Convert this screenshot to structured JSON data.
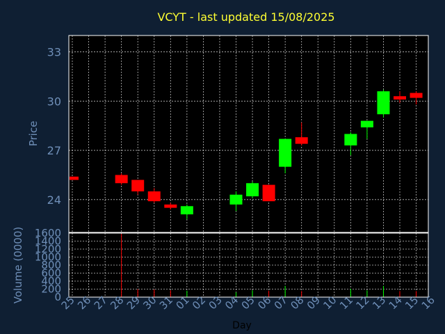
{
  "chart_data": {
    "type": "candlestick",
    "title": "VCYT - last updated 15/08/2025",
    "xlabel": "Day",
    "colors": {
      "background": "#0f1f33",
      "plot": "#000000",
      "grid": "#ffffff",
      "up": "#00ff00",
      "down": "#ff0000",
      "title": "#ffff33",
      "axis_text": "#6f8fb8"
    },
    "days": [
      "25",
      "26",
      "27",
      "28",
      "29",
      "30",
      "31",
      "01",
      "02",
      "03",
      "04",
      "05",
      "06",
      "07",
      "08",
      "09",
      "10",
      "11",
      "12",
      "13",
      "14",
      "15",
      "16"
    ],
    "price_panel": {
      "ylabel": "Price",
      "ylim": [
        22.0,
        34.0
      ],
      "yticks": [
        24,
        27,
        30,
        33
      ],
      "grid": true
    },
    "volume_panel": {
      "ylabel": "Volume (0000)",
      "ylim": [
        0,
        1600
      ],
      "yticks": [
        0,
        200,
        400,
        600,
        800,
        1000,
        1200,
        1400,
        1600
      ],
      "grid": true
    },
    "candles": [
      {
        "day": "25",
        "open": 25.4,
        "high": 25.4,
        "low": 25.2,
        "close": 25.2,
        "volume": 0
      },
      {
        "day": "28",
        "open": 25.5,
        "high": 25.6,
        "low": 24.9,
        "close": 25.0,
        "volume": 1580
      },
      {
        "day": "29",
        "open": 25.2,
        "high": 25.2,
        "low": 24.3,
        "close": 24.5,
        "volume": 200
      },
      {
        "day": "30",
        "open": 24.5,
        "high": 24.7,
        "low": 23.8,
        "close": 23.9,
        "volume": 190
      },
      {
        "day": "31",
        "open": 23.7,
        "high": 23.8,
        "low": 23.4,
        "close": 23.5,
        "volume": 170
      },
      {
        "day": "01",
        "open": 23.1,
        "high": 23.7,
        "low": 22.8,
        "close": 23.6,
        "volume": 160
      },
      {
        "day": "04",
        "open": 23.7,
        "high": 24.5,
        "low": 23.3,
        "close": 24.3,
        "volume": 120
      },
      {
        "day": "05",
        "open": 24.2,
        "high": 25.1,
        "low": 24.1,
        "close": 25.0,
        "volume": 170
      },
      {
        "day": "06",
        "open": 24.9,
        "high": 24.9,
        "low": 23.9,
        "close": 23.9,
        "volume": 160
      },
      {
        "day": "07",
        "open": 26.0,
        "high": 27.7,
        "low": 25.6,
        "close": 27.7,
        "volume": 280
      },
      {
        "day": "08",
        "open": 27.8,
        "high": 28.7,
        "low": 27.3,
        "close": 27.4,
        "volume": 150
      },
      {
        "day": "11",
        "open": 27.3,
        "high": 28.1,
        "low": 26.7,
        "close": 28.0,
        "volume": 210
      },
      {
        "day": "12",
        "open": 28.4,
        "high": 28.8,
        "low": 27.7,
        "close": 28.8,
        "volume": 170
      },
      {
        "day": "13",
        "open": 29.2,
        "high": 30.7,
        "low": 29.0,
        "close": 30.6,
        "volume": 280
      },
      {
        "day": "14",
        "open": 30.3,
        "high": 30.6,
        "low": 29.9,
        "close": 30.1,
        "volume": 150
      },
      {
        "day": "15",
        "open": 30.5,
        "high": 30.6,
        "low": 29.8,
        "close": 30.2,
        "volume": 150
      }
    ]
  }
}
